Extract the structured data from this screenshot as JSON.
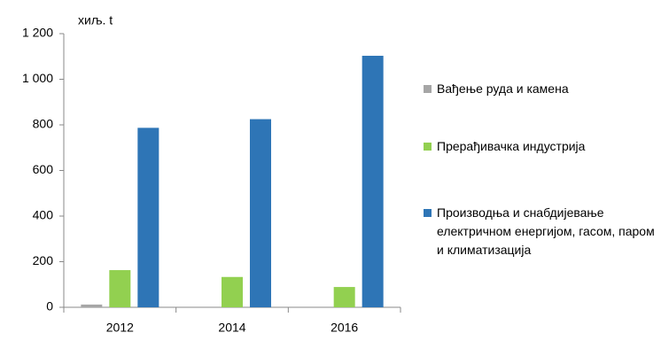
{
  "chart_data": {
    "type": "bar",
    "y_label": "хиљ. t",
    "categories": [
      "2012",
      "2014",
      "2016"
    ],
    "series": [
      {
        "name": "Вађење руда и камена",
        "color": "#a6a6a6",
        "values": [
          12,
          0,
          0
        ]
      },
      {
        "name": "Прерађивачка индустрија",
        "color": "#92d050",
        "values": [
          163,
          133,
          89
        ]
      },
      {
        "name": "Производња и снабдијевање електричном енергијом, гасом, паром и климатизација",
        "color": "#2e75b6",
        "values": [
          787,
          825,
          1103
        ]
      }
    ],
    "ylim": [
      0,
      1200
    ],
    "yticks": [
      0,
      200,
      400,
      600,
      800,
      {
        "value": 1000,
        "label": "1 000"
      },
      {
        "value": 1200,
        "label": "1 200"
      }
    ],
    "legend": "right"
  }
}
